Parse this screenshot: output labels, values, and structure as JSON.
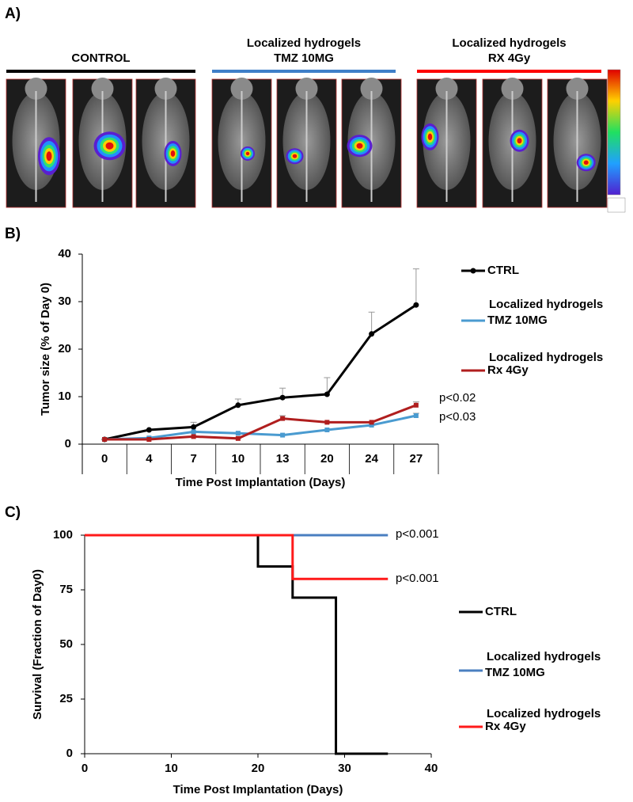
{
  "figure": {
    "panel_labels": [
      "A)",
      "B)",
      "C)"
    ],
    "groups": [
      {
        "lines": [
          "CONTROL"
        ],
        "color": "#000000"
      },
      {
        "lines": [
          "Localized hydrogels",
          "TMZ 10MG"
        ],
        "color": "#3f7fc8"
      },
      {
        "lines": [
          "Localized hydrogels",
          "RX 4Gy"
        ],
        "color": "#ff0000"
      }
    ]
  },
  "chart_data": [
    {
      "type": "line",
      "y_label": "Tumor size (% of Day 0)",
      "x_label": "Time Post Implantation (Days)",
      "categories": [
        "0",
        "4",
        "7",
        "10",
        "13",
        "20",
        "24",
        "27"
      ],
      "ylim": [
        0,
        40
      ],
      "yticks": [
        0,
        10,
        20,
        30,
        40
      ],
      "series": [
        {
          "name": [
            "CTRL"
          ],
          "color": "#000000",
          "marker": "circle",
          "values": [
            1,
            3,
            3.6,
            8.2,
            9.8,
            10.5,
            23.2,
            29.3
          ],
          "errors": [
            0,
            0,
            1,
            1.3,
            2,
            3.5,
            4.6,
            7.6
          ]
        },
        {
          "name": [
            "Localized hydrogels",
            "TMZ 10MG"
          ],
          "color": "#4a9bd0",
          "marker": "square",
          "values": [
            1,
            1.3,
            2.6,
            2.3,
            1.9,
            3,
            4,
            6
          ],
          "errors": [
            0,
            0,
            0,
            0,
            0,
            0,
            0,
            0.5
          ],
          "annotation": "p<0.03"
        },
        {
          "name": [
            "Localized hydrogels",
            "Rx 4Gy"
          ],
          "color": "#b01e1e",
          "marker": "square",
          "values": [
            1,
            1,
            1.6,
            1.2,
            5.4,
            4.6,
            4.6,
            8.2
          ],
          "errors": [
            0,
            0,
            0,
            0,
            0.6,
            0,
            0,
            0.7
          ],
          "annotation": "p<0.02"
        }
      ]
    },
    {
      "type": "step",
      "y_label": "Survival (Fraction of Day0)",
      "x_label": "Time Post Implantation (Days)",
      "xlim": [
        0,
        40
      ],
      "xticks": [
        0,
        10,
        20,
        30,
        40
      ],
      "ylim": [
        0,
        100
      ],
      "yticks": [
        0,
        25,
        50,
        75,
        100
      ],
      "series": [
        {
          "name": [
            "CTRL"
          ],
          "color": "#000000",
          "x": [
            0,
            20,
            24,
            29,
            35
          ],
          "values": [
            100,
            85.7,
            71.4,
            0,
            0
          ]
        },
        {
          "name": [
            "Localized hydrogels",
            "TMZ 10MG"
          ],
          "color": "#4a7fc0",
          "x": [
            0,
            35
          ],
          "values": [
            100,
            100
          ],
          "annotation": "p<0.001"
        },
        {
          "name": [
            "Localized hydrogels",
            "Rx 4Gy"
          ],
          "color": "#ff1a1a",
          "x": [
            0,
            24,
            35
          ],
          "values": [
            100,
            80,
            80
          ],
          "annotation": "p<0.001"
        }
      ]
    }
  ]
}
